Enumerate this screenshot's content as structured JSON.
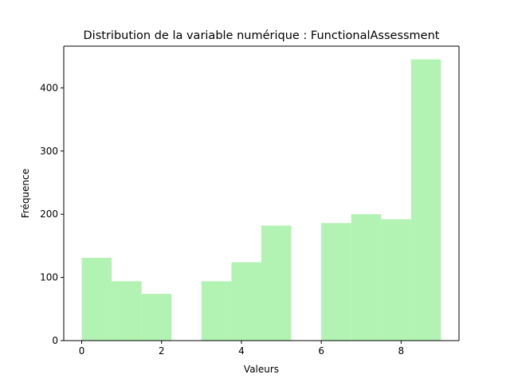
{
  "chart_data": {
    "type": "bar",
    "title": "Distribution de la variable numérique : FunctionalAssessment",
    "xlabel": "Valeurs",
    "ylabel": "Fréquence",
    "xlim": [
      -0.45,
      9.45
    ],
    "ylim": [
      0,
      466
    ],
    "x_ticks": [
      0,
      2,
      4,
      6,
      8
    ],
    "y_ticks": [
      0,
      100,
      200,
      300,
      400
    ],
    "bins": [
      {
        "start": 0.0,
        "end": 0.75,
        "value": 131
      },
      {
        "start": 0.75,
        "end": 1.5,
        "value": 94
      },
      {
        "start": 1.5,
        "end": 2.25,
        "value": 74
      },
      {
        "start": 2.25,
        "end": 3.0,
        "value": 0
      },
      {
        "start": 3.0,
        "end": 3.75,
        "value": 94
      },
      {
        "start": 3.75,
        "end": 4.5,
        "value": 124
      },
      {
        "start": 4.5,
        "end": 5.25,
        "value": 182
      },
      {
        "start": 5.25,
        "end": 6.0,
        "value": 0
      },
      {
        "start": 6.0,
        "end": 6.75,
        "value": 186
      },
      {
        "start": 6.75,
        "end": 7.5,
        "value": 200
      },
      {
        "start": 7.5,
        "end": 8.25,
        "value": 192
      },
      {
        "start": 8.25,
        "end": 9.0,
        "value": 445
      }
    ],
    "bar_color": "#b2f2b2",
    "grid": false,
    "legend": "none"
  }
}
